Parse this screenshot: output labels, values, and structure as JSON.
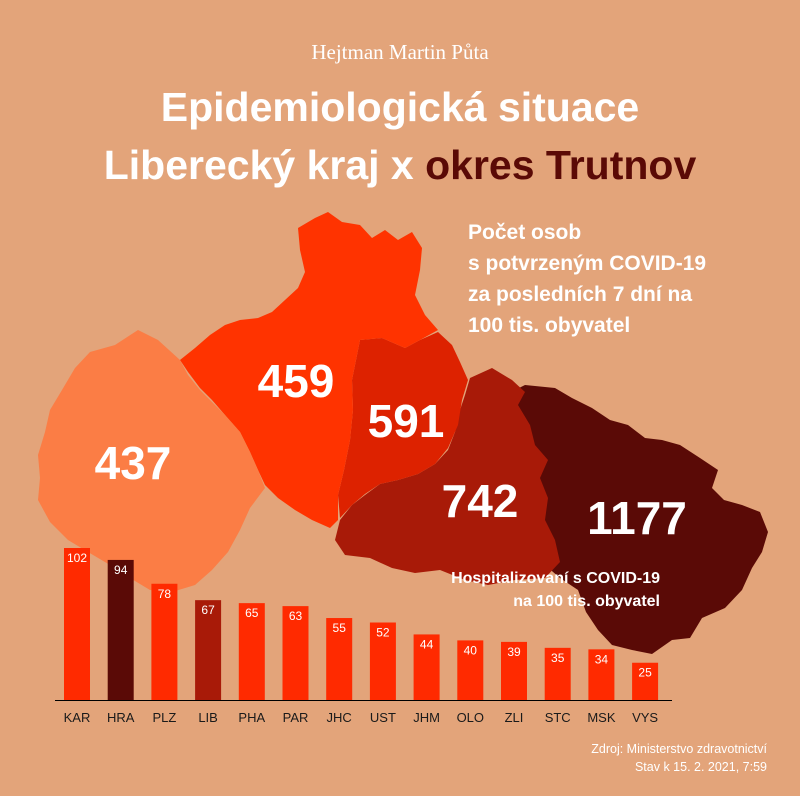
{
  "author": "Hejtman Martin Půta",
  "title": {
    "line1": "Epidemiologická situace",
    "line2_start": "Liberecký kraj x ",
    "line2_accent": "okres Trutnov"
  },
  "colors": {
    "background": "#E3A47A",
    "accent_dark": "#5A0A06",
    "bar_default": "#FF2A00",
    "bar_hra": "#5A0A06",
    "bar_lib": "#A81A08"
  },
  "map_legend": [
    "Počet osob",
    "s potvrzeným COVID-19",
    "za posledních 7 dní na",
    "100 tis. obyvatel"
  ],
  "map_values": [
    {
      "name": "region-1",
      "value": 437,
      "color": "#FB7D45"
    },
    {
      "name": "region-2",
      "value": 459,
      "color": "#FF3300"
    },
    {
      "name": "region-3",
      "value": 591,
      "color": "#DD2200"
    },
    {
      "name": "region-4",
      "value": 742,
      "color": "#A81A08"
    },
    {
      "name": "region-5",
      "value": 1177,
      "color": "#5A0A06"
    }
  ],
  "chart_legend": [
    "Hospitalizovaní s COVID-19",
    "na 100 tis. obyvatel"
  ],
  "chart_data": {
    "type": "bar",
    "title": "Hospitalizovaní s COVID-19 na 100 tis. obyvatel",
    "categories": [
      "KAR",
      "HRA",
      "PLZ",
      "LIB",
      "PHA",
      "PAR",
      "JHC",
      "UST",
      "JHM",
      "OLO",
      "ZLI",
      "STC",
      "MSK",
      "VYS"
    ],
    "values": [
      102,
      94,
      78,
      67,
      65,
      63,
      55,
      52,
      44,
      40,
      39,
      35,
      34,
      25
    ],
    "bar_colors": [
      "#FF2A00",
      "#5A0A06",
      "#FF2A00",
      "#A81A08",
      "#FF2A00",
      "#FF2A00",
      "#FF2A00",
      "#FF2A00",
      "#FF2A00",
      "#FF2A00",
      "#FF2A00",
      "#FF2A00",
      "#FF2A00",
      "#FF2A00"
    ],
    "ylim": [
      0,
      102
    ],
    "grid": false,
    "xlabel": "",
    "ylabel": ""
  },
  "source": {
    "line1": "Zdroj: Ministerstvo zdravotnictví",
    "line2": "Stav k 15. 2. 2021, 7:59"
  }
}
